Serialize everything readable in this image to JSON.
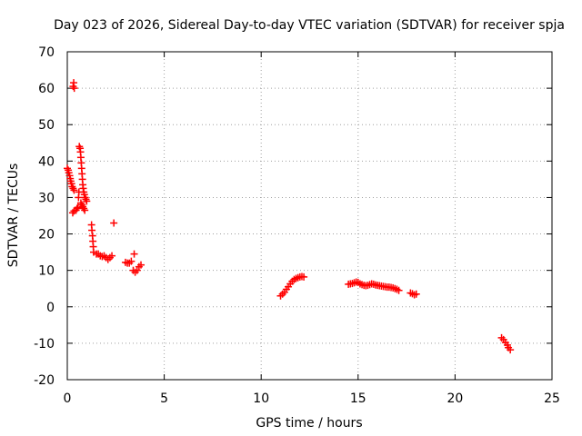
{
  "chart_data": {
    "type": "scatter",
    "title": "Day 023 of 2026, Sidereal Day-to-day VTEC variation (SDTVAR) for receiver spja",
    "xlabel": "GPS time / hours",
    "ylabel": "SDTVAR / TECUs",
    "xlim": [
      0,
      25
    ],
    "ylim": [
      -20,
      70
    ],
    "x_ticks": [
      0,
      5,
      10,
      15,
      20,
      25
    ],
    "y_ticks": [
      -20,
      -10,
      0,
      10,
      20,
      30,
      40,
      50,
      60,
      70
    ],
    "x_tick_labels": [
      "0",
      "5",
      "10",
      "15",
      "20",
      "25"
    ],
    "y_tick_labels": [
      "-20",
      "-10",
      "0",
      "10",
      "20",
      "30",
      "40",
      "50",
      "60",
      "70"
    ],
    "grid": true,
    "marker": "+",
    "series_color": "#ff0000",
    "series": [
      {
        "name": "SDTVAR",
        "points": [
          [
            0.0,
            38.0
          ],
          [
            0.05,
            37.5
          ],
          [
            0.08,
            36.8
          ],
          [
            0.12,
            36.0
          ],
          [
            0.15,
            35.2
          ],
          [
            0.18,
            34.5
          ],
          [
            0.22,
            33.8
          ],
          [
            0.25,
            33.0
          ],
          [
            0.3,
            32.5
          ],
          [
            0.35,
            32.0
          ],
          [
            0.3,
            60.5
          ],
          [
            0.33,
            61.5
          ],
          [
            0.36,
            60.0
          ],
          [
            0.28,
            25.8
          ],
          [
            0.35,
            26.3
          ],
          [
            0.45,
            26.5
          ],
          [
            0.5,
            27.0
          ],
          [
            0.55,
            27.3
          ],
          [
            0.58,
            30.0
          ],
          [
            0.6,
            31.5
          ],
          [
            0.62,
            44.0
          ],
          [
            0.66,
            43.5
          ],
          [
            0.68,
            42.5
          ],
          [
            0.7,
            41.0
          ],
          [
            0.72,
            39.5
          ],
          [
            0.74,
            38.0
          ],
          [
            0.76,
            36.5
          ],
          [
            0.78,
            35.0
          ],
          [
            0.8,
            33.5
          ],
          [
            0.82,
            32.5
          ],
          [
            0.85,
            31.5
          ],
          [
            0.88,
            30.8
          ],
          [
            0.92,
            30.0
          ],
          [
            0.96,
            29.5
          ],
          [
            1.0,
            29.0
          ],
          [
            0.7,
            28.5
          ],
          [
            0.75,
            28.0
          ],
          [
            0.8,
            27.5
          ],
          [
            0.85,
            27.0
          ],
          [
            0.9,
            26.5
          ],
          [
            1.25,
            22.5
          ],
          [
            1.27,
            21.0
          ],
          [
            1.3,
            19.5
          ],
          [
            1.32,
            18.0
          ],
          [
            1.34,
            16.5
          ],
          [
            1.36,
            15.0
          ],
          [
            1.5,
            14.5
          ],
          [
            1.6,
            14.5
          ],
          [
            1.7,
            14.0
          ],
          [
            1.8,
            13.8
          ],
          [
            1.9,
            14.0
          ],
          [
            2.0,
            13.5
          ],
          [
            2.1,
            13.0
          ],
          [
            2.2,
            13.5
          ],
          [
            2.3,
            14.0
          ],
          [
            2.4,
            23.0
          ],
          [
            3.0,
            12.2
          ],
          [
            3.1,
            12.0
          ],
          [
            3.2,
            12.0
          ],
          [
            3.3,
            12.5
          ],
          [
            3.4,
            10.0
          ],
          [
            3.45,
            14.5
          ],
          [
            3.5,
            9.5
          ],
          [
            3.6,
            10.0
          ],
          [
            3.7,
            11.0
          ],
          [
            3.8,
            11.5
          ],
          [
            11.0,
            3.0
          ],
          [
            11.1,
            3.5
          ],
          [
            11.2,
            4.0
          ],
          [
            11.3,
            4.8
          ],
          [
            11.4,
            5.5
          ],
          [
            11.5,
            6.3
          ],
          [
            11.6,
            7.0
          ],
          [
            11.7,
            7.5
          ],
          [
            11.8,
            7.8
          ],
          [
            11.9,
            8.0
          ],
          [
            12.0,
            8.2
          ],
          [
            12.1,
            8.3
          ],
          [
            12.2,
            8.2
          ],
          [
            14.5,
            6.2
          ],
          [
            14.6,
            6.3
          ],
          [
            14.7,
            6.4
          ],
          [
            14.8,
            6.6
          ],
          [
            14.9,
            6.8
          ],
          [
            15.0,
            6.7
          ],
          [
            15.1,
            6.3
          ],
          [
            15.2,
            6.1
          ],
          [
            15.3,
            5.9
          ],
          [
            15.4,
            5.8
          ],
          [
            15.5,
            5.9
          ],
          [
            15.6,
            6.1
          ],
          [
            15.7,
            6.3
          ],
          [
            15.8,
            6.2
          ],
          [
            15.9,
            6.0
          ],
          [
            16.0,
            5.9
          ],
          [
            16.1,
            5.8
          ],
          [
            16.2,
            5.7
          ],
          [
            16.3,
            5.6
          ],
          [
            16.4,
            5.5
          ],
          [
            16.5,
            5.4
          ],
          [
            16.6,
            5.4
          ],
          [
            16.7,
            5.3
          ],
          [
            16.8,
            5.2
          ],
          [
            16.9,
            5.0
          ],
          [
            17.0,
            4.8
          ],
          [
            17.1,
            4.5
          ],
          [
            17.7,
            3.8
          ],
          [
            17.8,
            3.6
          ],
          [
            17.9,
            3.3
          ],
          [
            18.0,
            3.5
          ],
          [
            22.4,
            -8.5
          ],
          [
            22.5,
            -9.0
          ],
          [
            22.6,
            -9.8
          ],
          [
            22.7,
            -10.5
          ],
          [
            22.75,
            -11.2
          ],
          [
            22.85,
            -11.8
          ]
        ]
      }
    ]
  }
}
